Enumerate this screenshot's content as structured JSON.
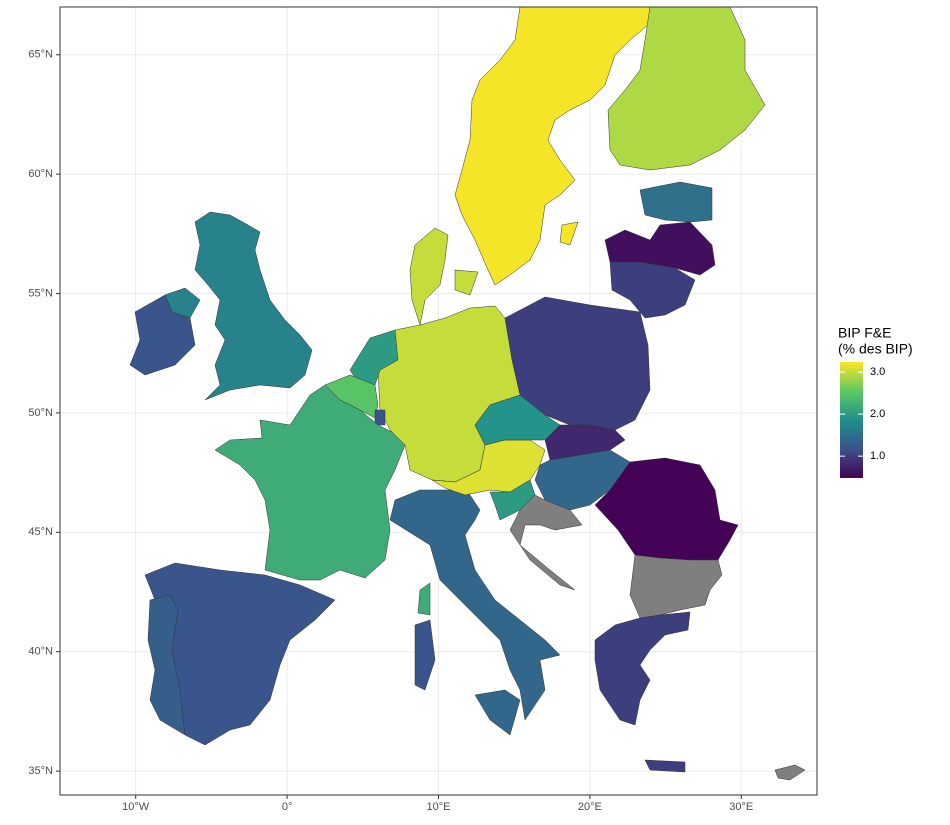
{
  "chart_data": {
    "type": "choropleth",
    "xlim": [
      -15,
      35
    ],
    "ylim": [
      34,
      67
    ],
    "xticks": [
      {
        "value": -10,
        "label": "10°W"
      },
      {
        "value": 0,
        "label": "0°"
      },
      {
        "value": 10,
        "label": "10°E"
      },
      {
        "value": 20,
        "label": "20°E"
      },
      {
        "value": 30,
        "label": "30°E"
      }
    ],
    "yticks": [
      {
        "value": 35,
        "label": "35°N"
      },
      {
        "value": 40,
        "label": "40°N"
      },
      {
        "value": 45,
        "label": "45°N"
      },
      {
        "value": 50,
        "label": "50°N"
      },
      {
        "value": 55,
        "label": "55°N"
      },
      {
        "value": 60,
        "label": "60°N"
      },
      {
        "value": 65,
        "label": "65°N"
      }
    ],
    "grid": true,
    "legend_title": [
      "BIP F&E",
      "(% des BIP)"
    ],
    "colorbar_lim": [
      0.48,
      3.24
    ],
    "colorbar_ticks": [
      {
        "value": 1,
        "label": "1.0"
      },
      {
        "value": 2,
        "label": "2.0"
      },
      {
        "value": 3,
        "label": "3.0"
      }
    ],
    "colormap": "viridis",
    "na_color": "#7f7f7f",
    "values": [
      3.2,
      2.9,
      1.5,
      0.6,
      1.0,
      1.0,
      3.0,
      3.0,
      2.0,
      2.5,
      1.2,
      2.2,
      1.7,
      1.7,
      1.2,
      1.2,
      1.3,
      1.4,
      1.4,
      2.2,
      1.2,
      3.1,
      1.9,
      0.8,
      1.4,
      2.0,
      null,
      0.5,
      null,
      1.0,
      1.0,
      null,
      3.2,
      3.0
    ]
  }
}
